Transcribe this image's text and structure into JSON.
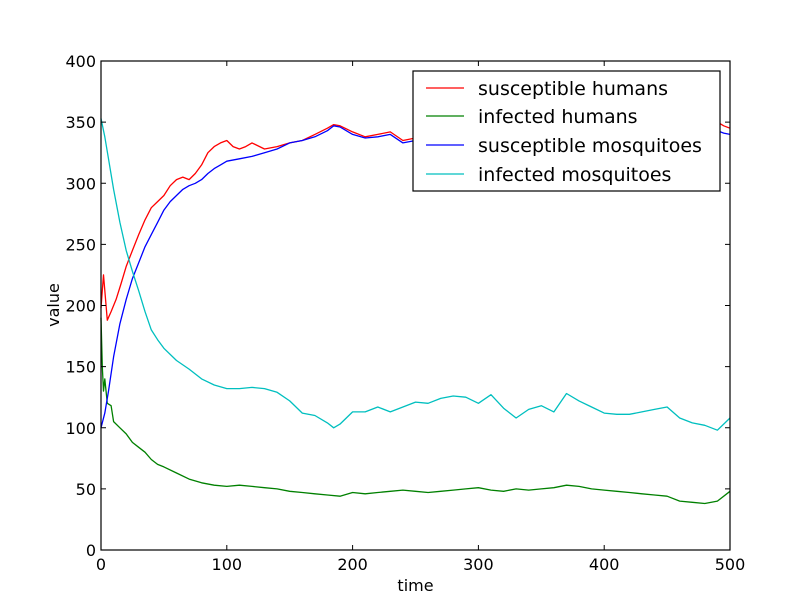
{
  "chart_data": {
    "type": "line",
    "title": "",
    "xlabel": "time",
    "ylabel": "value",
    "xlim": [
      0,
      500
    ],
    "ylim": [
      0,
      400
    ],
    "x_ticks": [
      0,
      100,
      200,
      300,
      400,
      500
    ],
    "y_ticks": [
      0,
      50,
      100,
      150,
      200,
      250,
      300,
      350,
      400
    ],
    "grid": false,
    "legend_position": "top-right",
    "series": [
      {
        "name": "susceptible humans",
        "color": "#ff0000",
        "x": [
          0,
          2,
          5,
          8,
          12,
          16,
          20,
          25,
          30,
          35,
          40,
          45,
          50,
          55,
          60,
          65,
          70,
          75,
          80,
          85,
          90,
          95,
          100,
          105,
          110,
          115,
          120,
          130,
          140,
          150,
          160,
          170,
          180,
          185,
          190,
          200,
          210,
          220,
          230,
          240,
          250,
          300,
          350,
          400,
          450,
          480,
          490,
          495,
          500
        ],
        "y": [
          198,
          225,
          188,
          195,
          205,
          218,
          232,
          245,
          258,
          270,
          280,
          285,
          290,
          298,
          303,
          305,
          303,
          308,
          315,
          325,
          330,
          333,
          335,
          330,
          328,
          330,
          333,
          328,
          330,
          333,
          335,
          340,
          345,
          348,
          347,
          342,
          338,
          340,
          342,
          335,
          337,
          338,
          340,
          341,
          343,
          345,
          350,
          347,
          345
        ]
      },
      {
        "name": "infected humans",
        "color": "#008000",
        "x": [
          0,
          1,
          2,
          3,
          5,
          8,
          10,
          15,
          20,
          25,
          30,
          35,
          40,
          45,
          50,
          60,
          70,
          80,
          90,
          100,
          110,
          120,
          130,
          140,
          150,
          160,
          170,
          180,
          190,
          200,
          210,
          220,
          230,
          240,
          250,
          260,
          270,
          280,
          290,
          300,
          310,
          320,
          330,
          340,
          350,
          360,
          370,
          380,
          390,
          400,
          410,
          420,
          430,
          440,
          450,
          460,
          470,
          480,
          490,
          500
        ],
        "y": [
          190,
          150,
          130,
          140,
          120,
          118,
          105,
          100,
          95,
          88,
          84,
          80,
          74,
          70,
          68,
          63,
          58,
          55,
          53,
          52,
          53,
          52,
          51,
          50,
          48,
          47,
          46,
          45,
          44,
          47,
          46,
          47,
          48,
          49,
          48,
          47,
          48,
          49,
          50,
          51,
          49,
          48,
          50,
          49,
          50,
          51,
          53,
          52,
          50,
          49,
          48,
          47,
          46,
          45,
          44,
          40,
          39,
          38,
          40,
          48
        ]
      },
      {
        "name": "susceptible mosquitoes",
        "color": "#0000ff",
        "x": [
          0,
          3,
          6,
          10,
          15,
          20,
          25,
          30,
          35,
          40,
          45,
          50,
          55,
          60,
          65,
          70,
          75,
          80,
          85,
          90,
          95,
          100,
          110,
          120,
          130,
          140,
          150,
          160,
          170,
          180,
          185,
          190,
          200,
          210,
          220,
          230,
          240,
          250,
          300,
          350,
          400,
          450,
          480,
          490,
          495,
          500
        ],
        "y": [
          100,
          112,
          130,
          158,
          185,
          205,
          222,
          235,
          248,
          258,
          268,
          278,
          285,
          290,
          295,
          298,
          300,
          303,
          308,
          312,
          315,
          318,
          320,
          322,
          325,
          328,
          333,
          335,
          338,
          343,
          347,
          346,
          340,
          337,
          338,
          340,
          333,
          335,
          338,
          340,
          341,
          343,
          345,
          343,
          341,
          340
        ]
      },
      {
        "name": "infected mosquitoes",
        "color": "#00bfbf",
        "x": [
          0,
          3,
          6,
          10,
          15,
          20,
          25,
          30,
          35,
          40,
          45,
          50,
          60,
          70,
          80,
          90,
          100,
          110,
          120,
          130,
          140,
          150,
          160,
          170,
          180,
          185,
          190,
          200,
          210,
          220,
          230,
          240,
          250,
          260,
          270,
          280,
          290,
          300,
          310,
          320,
          330,
          340,
          350,
          360,
          370,
          380,
          390,
          400,
          410,
          420,
          430,
          440,
          450,
          460,
          470,
          480,
          490,
          500
        ],
        "y": [
          353,
          338,
          320,
          295,
          268,
          245,
          228,
          212,
          195,
          180,
          172,
          165,
          155,
          148,
          140,
          135,
          132,
          132,
          133,
          132,
          129,
          122,
          112,
          110,
          104,
          100,
          103,
          113,
          113,
          117,
          113,
          117,
          121,
          120,
          124,
          126,
          125,
          120,
          127,
          116,
          108,
          115,
          118,
          113,
          128,
          122,
          117,
          112,
          111,
          111,
          113,
          115,
          117,
          108,
          104,
          102,
          98,
          108
        ]
      }
    ]
  }
}
